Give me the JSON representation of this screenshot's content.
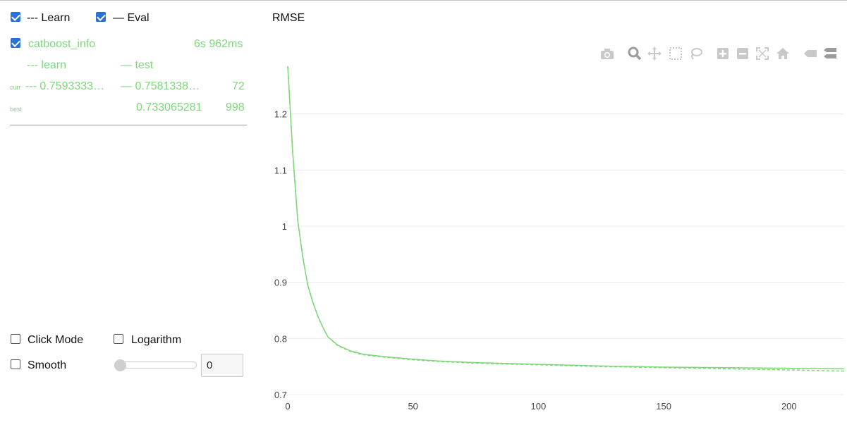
{
  "legend": {
    "learn": {
      "label": "--- Learn",
      "checked": true
    },
    "eval": {
      "label": "— Eval",
      "checked": true
    }
  },
  "run": {
    "name": "catboost_info",
    "checked": true,
    "time": "6s 962ms",
    "learn_label": "--- learn",
    "test_label": "— test",
    "curr_label": "curr",
    "curr_learn": "--- 0.7593333…",
    "curr_test": "— 0.7581338…",
    "curr_iter": "72",
    "best_label": "best",
    "best_test": "0.733065281",
    "best_iter": "998"
  },
  "controls": {
    "click_mode": {
      "label": "Click Mode",
      "checked": false
    },
    "logarithm": {
      "label": "Logarithm",
      "checked": false
    },
    "smooth": {
      "label": "Smooth",
      "checked": false
    },
    "smooth_value": "0"
  },
  "modebar": [
    "camera-icon",
    "zoom-icon",
    "pan-icon",
    "box-select-icon",
    "lasso-icon",
    "zoom-in-icon",
    "zoom-out-icon",
    "autoscale-icon",
    "home-icon",
    "hover-closest-icon",
    "hover-compare-icon"
  ],
  "chart_data": {
    "type": "line",
    "title": "RMSE",
    "xlabel": "",
    "ylabel": "",
    "xlim": [
      0,
      222
    ],
    "ylim": [
      0.695,
      1.29
    ],
    "xticks": [
      0,
      50,
      100,
      150,
      200
    ],
    "yticks": [
      0.7,
      0.8,
      0.9,
      1,
      1.1,
      1.2
    ],
    "ytick_labels": [
      "0.7",
      "0.8",
      "0.9",
      "1",
      "1.1",
      "1.2"
    ],
    "grid": true,
    "series": [
      {
        "name": "learn",
        "style": "dashed",
        "color": "#7ed77a",
        "x": [
          0,
          2,
          4,
          6,
          8,
          10,
          12,
          14,
          16,
          20,
          25,
          30,
          40,
          50,
          60,
          75,
          100,
          125,
          150,
          175,
          200,
          222
        ],
        "y": [
          1.285,
          1.13,
          1.01,
          0.945,
          0.895,
          0.865,
          0.84,
          0.82,
          0.803,
          0.787,
          0.777,
          0.771,
          0.766,
          0.762,
          0.759,
          0.756,
          0.753,
          0.75,
          0.748,
          0.746,
          0.744,
          0.742
        ]
      },
      {
        "name": "test",
        "style": "solid",
        "color": "#7ed77a",
        "x": [
          0,
          2,
          4,
          6,
          8,
          10,
          12,
          14,
          16,
          20,
          25,
          30,
          40,
          50,
          60,
          75,
          100,
          125,
          150,
          175,
          200,
          222
        ],
        "y": [
          1.285,
          1.13,
          1.01,
          0.945,
          0.895,
          0.865,
          0.84,
          0.82,
          0.803,
          0.788,
          0.778,
          0.772,
          0.767,
          0.763,
          0.76,
          0.757,
          0.754,
          0.751,
          0.749,
          0.748,
          0.747,
          0.746
        ]
      }
    ]
  }
}
